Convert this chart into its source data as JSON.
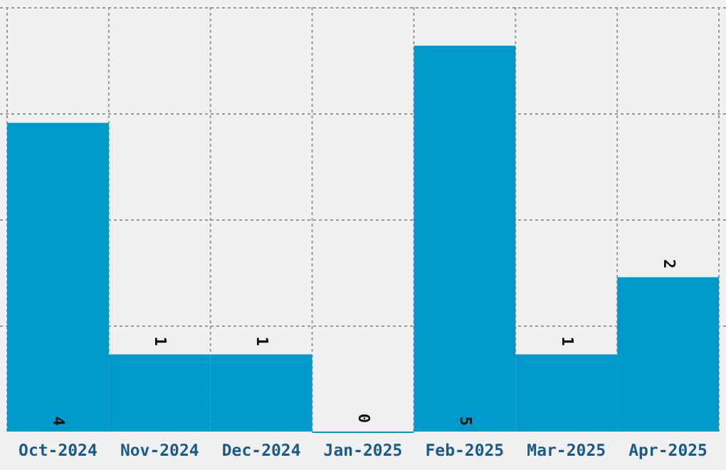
{
  "chart_data": {
    "type": "bar",
    "categories": [
      "Oct-2024",
      "Nov-2024",
      "Dec-2024",
      "Jan-2025",
      "Feb-2025",
      "Mar-2025",
      "Apr-2025"
    ],
    "values": [
      4,
      1,
      1,
      0,
      5,
      1,
      2
    ],
    "color": "#0099cc",
    "data_labels": true,
    "grid": true
  }
}
